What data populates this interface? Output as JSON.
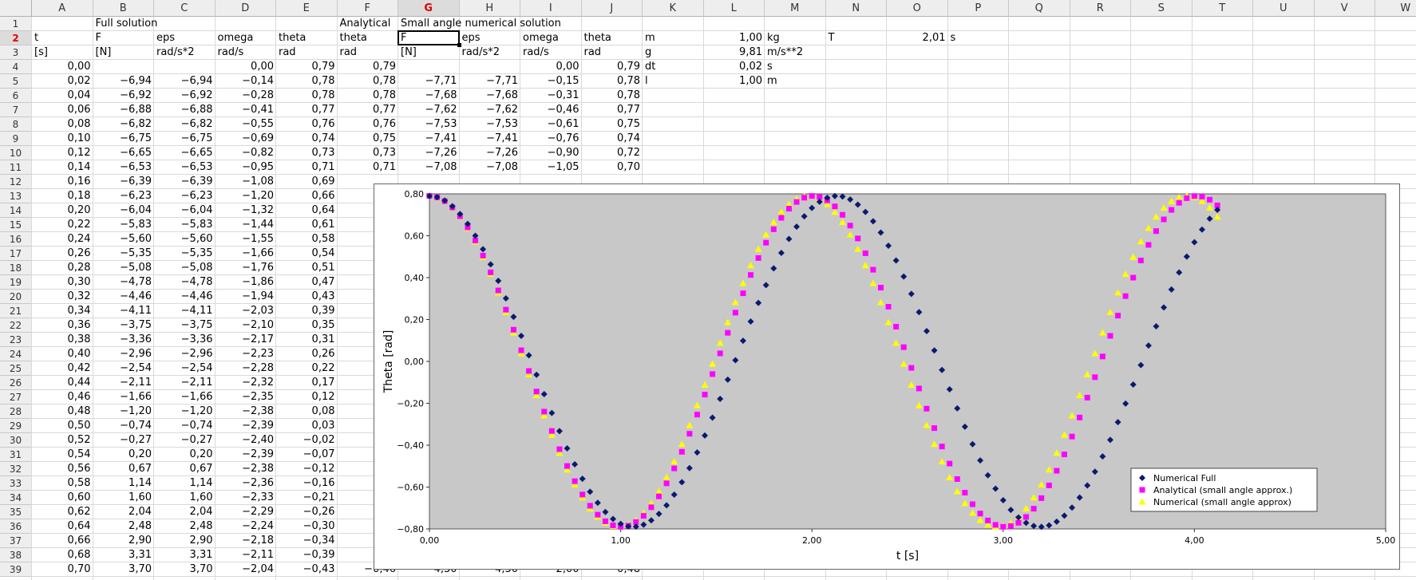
{
  "sheet": {
    "columns": [
      "A",
      "B",
      "C",
      "D",
      "E",
      "F",
      "G",
      "H",
      "I",
      "J",
      "K",
      "L",
      "M",
      "N",
      "O",
      "P",
      "Q",
      "R",
      "S",
      "T",
      "U",
      "V",
      "W"
    ],
    "active_column": "G",
    "active_row": 2,
    "rows": [
      {
        "r": 1,
        "cells": {
          "B": "Full solution",
          "F": "Analytical",
          "G": "Small angle numerical solution"
        }
      },
      {
        "r": 2,
        "cells": {
          "A": "t",
          "B": "F",
          "C": "eps",
          "D": "omega",
          "E": "theta",
          "F": "theta",
          "G": "F",
          "H": "eps",
          "I": "omega",
          "J": "theta",
          "K": "m",
          "L": "1,00",
          "M": "kg",
          "N": "T",
          "O": "2,01",
          "P": "s"
        }
      },
      {
        "r": 3,
        "cells": {
          "A": "[s]",
          "B": "[N]",
          "C": "rad/s*2",
          "D": "rad/s",
          "E": "rad",
          "F": "rad",
          "G": "[N]",
          "H": "rad/s*2",
          "I": "rad/s",
          "J": "rad",
          "K": "g",
          "L": "9,81",
          "M": "m/s**2"
        }
      },
      {
        "r": 4,
        "cells": {
          "A": "0,00",
          "D": "0,00",
          "E": "0,79",
          "F": "0,79",
          "I": "0,00",
          "J": "0,79",
          "K": "dt",
          "L": "0,02",
          "M": "s"
        }
      },
      {
        "r": 5,
        "cells": {
          "A": "0,02",
          "B": "−6,94",
          "C": "−6,94",
          "D": "−0,14",
          "E": "0,78",
          "F": "0,78",
          "G": "−7,71",
          "H": "−7,71",
          "I": "−0,15",
          "J": "0,78",
          "K": "l",
          "L": "1,00",
          "M": "m"
        }
      },
      {
        "r": 6,
        "cells": {
          "A": "0,04",
          "B": "−6,92",
          "C": "−6,92",
          "D": "−0,28",
          "E": "0,78",
          "F": "0,78",
          "G": "−7,68",
          "H": "−7,68",
          "I": "−0,31",
          "J": "0,78"
        }
      },
      {
        "r": 7,
        "cells": {
          "A": "0,06",
          "B": "−6,88",
          "C": "−6,88",
          "D": "−0,41",
          "E": "0,77",
          "F": "0,77",
          "G": "−7,62",
          "H": "−7,62",
          "I": "−0,46",
          "J": "0,77"
        }
      },
      {
        "r": 8,
        "cells": {
          "A": "0,08",
          "B": "−6,82",
          "C": "−6,82",
          "D": "−0,55",
          "E": "0,76",
          "F": "0,76",
          "G": "−7,53",
          "H": "−7,53",
          "I": "−0,61",
          "J": "0,75"
        }
      },
      {
        "r": 9,
        "cells": {
          "A": "0,10",
          "B": "−6,75",
          "C": "−6,75",
          "D": "−0,69",
          "E": "0,74",
          "F": "0,75",
          "G": "−7,41",
          "H": "−7,41",
          "I": "−0,76",
          "J": "0,74"
        }
      },
      {
        "r": 10,
        "cells": {
          "A": "0,12",
          "B": "−6,65",
          "C": "−6,65",
          "D": "−0,82",
          "E": "0,73",
          "F": "0,73",
          "G": "−7,26",
          "H": "−7,26",
          "I": "−0,90",
          "J": "0,72"
        }
      },
      {
        "r": 11,
        "cells": {
          "A": "0,14",
          "B": "−6,53",
          "C": "−6,53",
          "D": "−0,95",
          "E": "0,71",
          "F": "0,71",
          "G": "−7,08",
          "H": "−7,08",
          "I": "−1,05",
          "J": "0,70"
        }
      },
      {
        "r": 12,
        "cells": {
          "A": "0,16",
          "B": "−6,39",
          "C": "−6,39",
          "D": "−1,08",
          "E": "0,69"
        }
      },
      {
        "r": 13,
        "cells": {
          "A": "0,18",
          "B": "−6,23",
          "C": "−6,23",
          "D": "−1,20",
          "E": "0,66"
        }
      },
      {
        "r": 14,
        "cells": {
          "A": "0,20",
          "B": "−6,04",
          "C": "−6,04",
          "D": "−1,32",
          "E": "0,64"
        }
      },
      {
        "r": 15,
        "cells": {
          "A": "0,22",
          "B": "−5,83",
          "C": "−5,83",
          "D": "−1,44",
          "E": "0,61"
        }
      },
      {
        "r": 16,
        "cells": {
          "A": "0,24",
          "B": "−5,60",
          "C": "−5,60",
          "D": "−1,55",
          "E": "0,58"
        }
      },
      {
        "r": 17,
        "cells": {
          "A": "0,26",
          "B": "−5,35",
          "C": "−5,35",
          "D": "−1,66",
          "E": "0,54"
        }
      },
      {
        "r": 18,
        "cells": {
          "A": "0,28",
          "B": "−5,08",
          "C": "−5,08",
          "D": "−1,76",
          "E": "0,51"
        }
      },
      {
        "r": 19,
        "cells": {
          "A": "0,30",
          "B": "−4,78",
          "C": "−4,78",
          "D": "−1,86",
          "E": "0,47"
        }
      },
      {
        "r": 20,
        "cells": {
          "A": "0,32",
          "B": "−4,46",
          "C": "−4,46",
          "D": "−1,94",
          "E": "0,43"
        }
      },
      {
        "r": 21,
        "cells": {
          "A": "0,34",
          "B": "−4,11",
          "C": "−4,11",
          "D": "−2,03",
          "E": "0,39"
        }
      },
      {
        "r": 22,
        "cells": {
          "A": "0,36",
          "B": "−3,75",
          "C": "−3,75",
          "D": "−2,10",
          "E": "0,35"
        }
      },
      {
        "r": 23,
        "cells": {
          "A": "0,38",
          "B": "−3,36",
          "C": "−3,36",
          "D": "−2,17",
          "E": "0,31"
        }
      },
      {
        "r": 24,
        "cells": {
          "A": "0,40",
          "B": "−2,96",
          "C": "−2,96",
          "D": "−2,23",
          "E": "0,26"
        }
      },
      {
        "r": 25,
        "cells": {
          "A": "0,42",
          "B": "−2,54",
          "C": "−2,54",
          "D": "−2,28",
          "E": "0,22"
        }
      },
      {
        "r": 26,
        "cells": {
          "A": "0,44",
          "B": "−2,11",
          "C": "−2,11",
          "D": "−2,32",
          "E": "0,17"
        }
      },
      {
        "r": 27,
        "cells": {
          "A": "0,46",
          "B": "−1,66",
          "C": "−1,66",
          "D": "−2,35",
          "E": "0,12"
        }
      },
      {
        "r": 28,
        "cells": {
          "A": "0,48",
          "B": "−1,20",
          "C": "−1,20",
          "D": "−2,38",
          "E": "0,08"
        }
      },
      {
        "r": 29,
        "cells": {
          "A": "0,50",
          "B": "−0,74",
          "C": "−0,74",
          "D": "−2,39",
          "E": "0,03"
        }
      },
      {
        "r": 30,
        "cells": {
          "A": "0,52",
          "B": "−0,27",
          "C": "−0,27",
          "D": "−2,40",
          "E": "−0,02"
        }
      },
      {
        "r": 31,
        "cells": {
          "A": "0,54",
          "B": "0,20",
          "C": "0,20",
          "D": "−2,39",
          "E": "−0,07"
        }
      },
      {
        "r": 32,
        "cells": {
          "A": "0,56",
          "B": "0,67",
          "C": "0,67",
          "D": "−2,38",
          "E": "−0,12"
        }
      },
      {
        "r": 33,
        "cells": {
          "A": "0,58",
          "B": "1,14",
          "C": "1,14",
          "D": "−2,36",
          "E": "−0,16"
        }
      },
      {
        "r": 34,
        "cells": {
          "A": "0,60",
          "B": "1,60",
          "C": "1,60",
          "D": "−2,33",
          "E": "−0,21"
        }
      },
      {
        "r": 35,
        "cells": {
          "A": "0,62",
          "B": "2,04",
          "C": "2,04",
          "D": "−2,29",
          "E": "−0,26"
        }
      },
      {
        "r": 36,
        "cells": {
          "A": "0,64",
          "B": "2,48",
          "C": "2,48",
          "D": "−2,24",
          "E": "−0,30"
        }
      },
      {
        "r": 37,
        "cells": {
          "A": "0,66",
          "B": "2,90",
          "C": "2,90",
          "D": "−2,18",
          "E": "−0,34"
        }
      },
      {
        "r": 38,
        "cells": {
          "A": "0,68",
          "B": "3,31",
          "C": "3,31",
          "D": "−2,11",
          "E": "−0,39"
        }
      },
      {
        "r": 39,
        "cells": {
          "A": "0,70",
          "B": "3,70",
          "C": "3,70",
          "D": "−2,04",
          "E": "−0,43",
          "F": "−0,46",
          "G": "4,30",
          "H": "4,30",
          "I": "−2,00",
          "J": "−0,48"
        }
      }
    ]
  },
  "chart_data": {
    "type": "scatter",
    "title": "",
    "xlabel": "t [s]",
    "ylabel": "Theta [rad]",
    "xlim": [
      0,
      5
    ],
    "ylim": [
      -0.8,
      0.8
    ],
    "xticks": [
      "0,00",
      "1,00",
      "2,00",
      "3,00",
      "4,00",
      "5,00"
    ],
    "yticks": [
      "0,80",
      "0,60",
      "0,40",
      "0,20",
      "0,00",
      "−0,20",
      "−0,40",
      "−0,60",
      "−0,80"
    ],
    "grid": false,
    "legend_position": "bottom-right",
    "plot_background": "#c8c8c8",
    "series": [
      {
        "name": "Numerical Full",
        "marker": "diamond",
        "color": "#0a1a6e",
        "amplitude": 0.79,
        "period": 2.13,
        "t_end": 4.14
      },
      {
        "name": "Analytical (small angle approx.)",
        "marker": "square",
        "color": "#ff00ff",
        "amplitude": 0.79,
        "period": 2.006,
        "t_end": 4.14
      },
      {
        "name": "Numerical  (small angle approx)",
        "marker": "triangle",
        "color": "#ffff00",
        "amplitude": 0.79,
        "period": 1.98,
        "t_end": 4.14
      }
    ],
    "t_step": 0.04
  }
}
